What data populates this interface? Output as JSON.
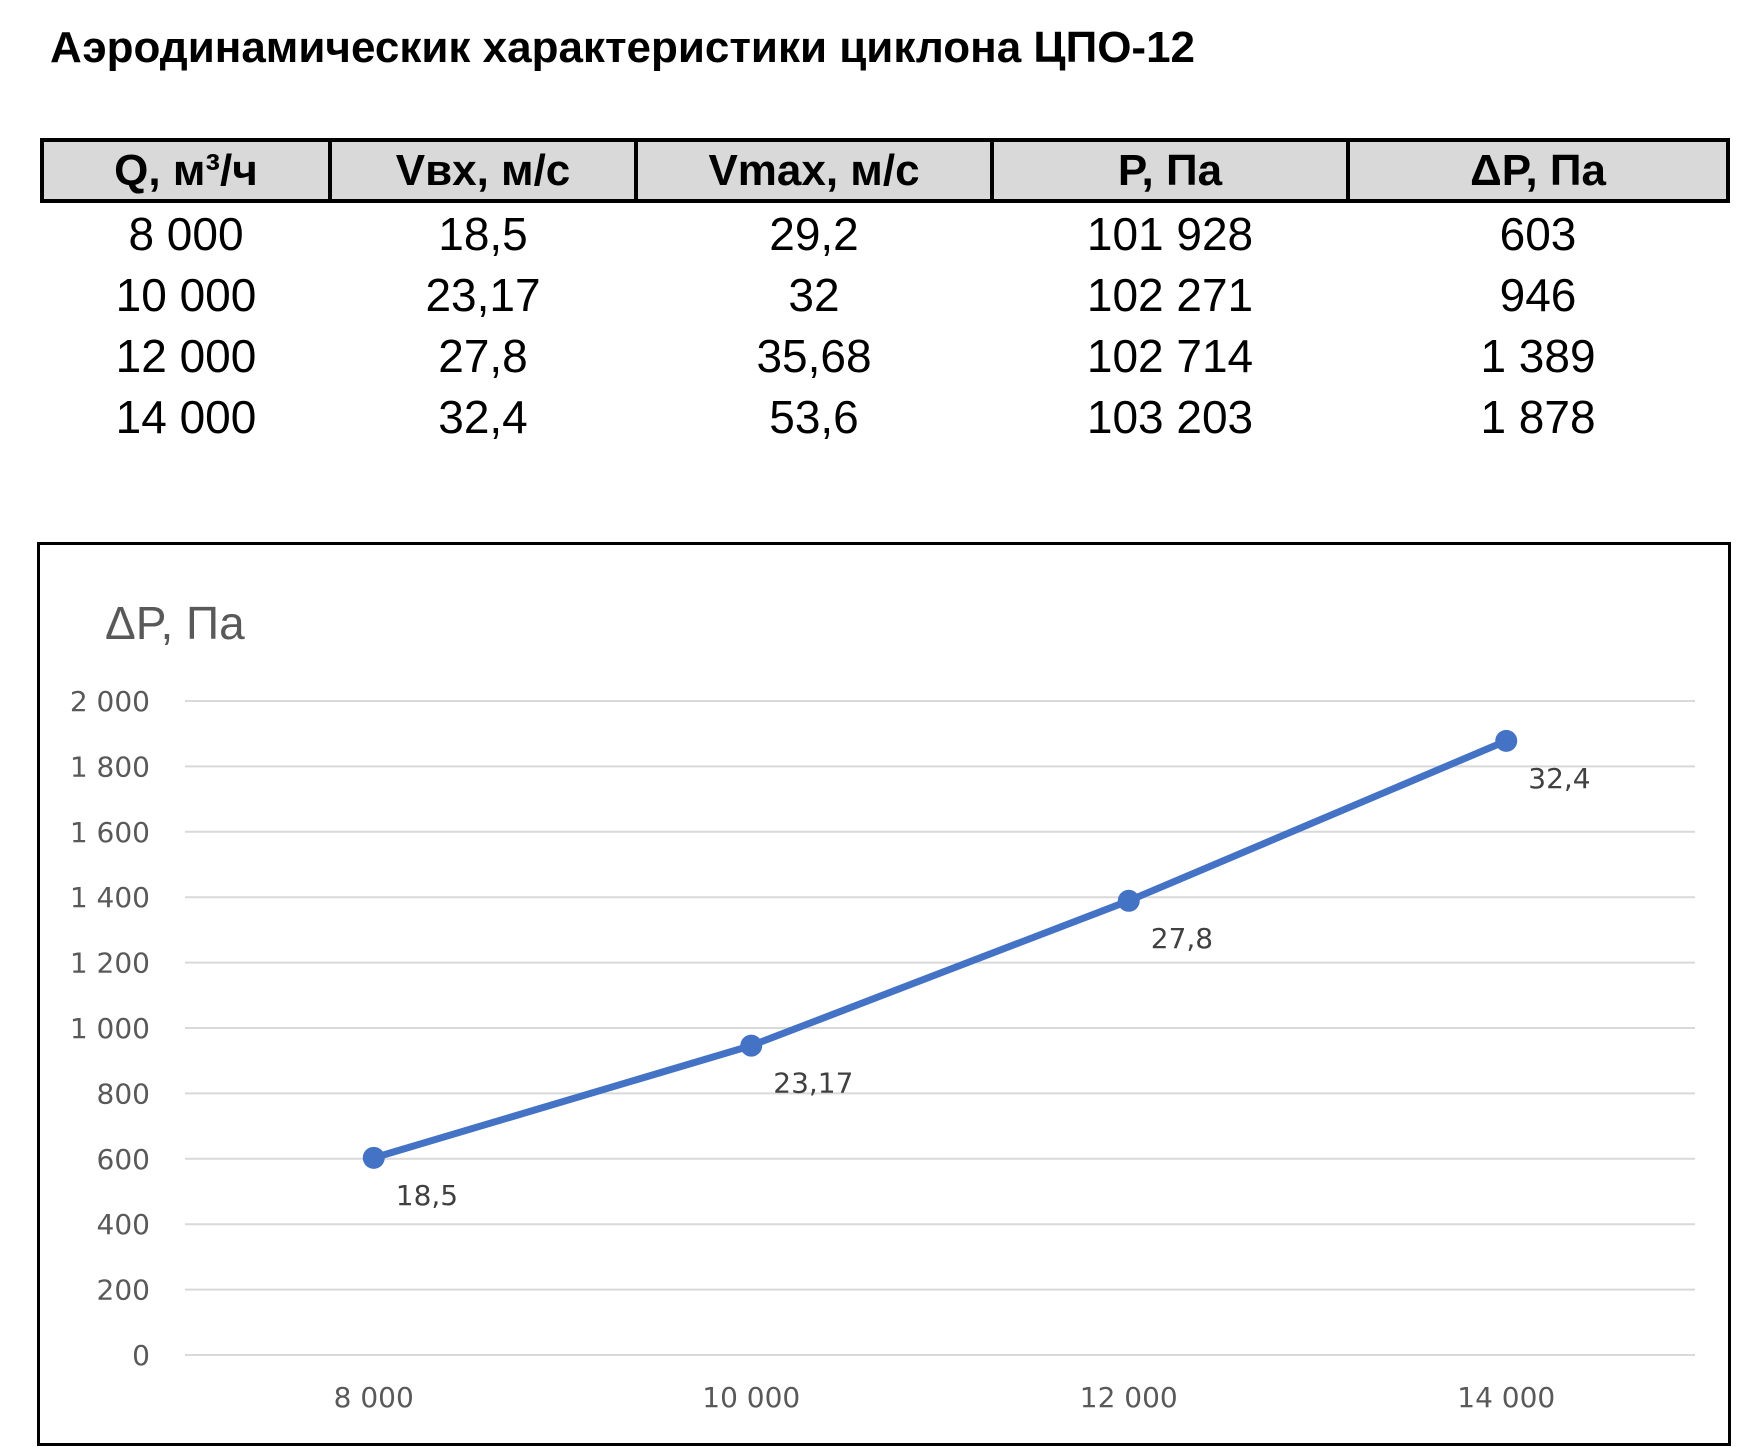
{
  "title": "Аэродинамическик характеристики циклона ЦПО-12",
  "table": {
    "headers": [
      "Q, м³/ч",
      "Vвх, м/с",
      "Vmax, м/с",
      "P, Па",
      "ΔP, Па"
    ],
    "rows": [
      [
        "8 000",
        "18,5",
        "29,2",
        "101 928",
        "603"
      ],
      [
        "10 000",
        "23,17",
        "32",
        "102 271",
        "946"
      ],
      [
        "12 000",
        "27,8",
        "35,68",
        "102 714",
        "1 389"
      ],
      [
        "14 000",
        "32,4",
        "53,6",
        "103 203",
        "1 878"
      ]
    ]
  },
  "chart_data": {
    "type": "line",
    "title": "",
    "ylabel": "ΔP, Па",
    "xlabel": "",
    "categories": [
      "8 000",
      "10 000",
      "12 000",
      "14 000"
    ],
    "series": [
      {
        "values": [
          603,
          946,
          1389,
          1878
        ],
        "data_labels": [
          "18,5",
          "23,17",
          "27,8",
          "32,4"
        ],
        "color": "#4472c4"
      }
    ],
    "ylim": [
      0,
      2000
    ],
    "yticks": [
      0,
      200,
      400,
      600,
      800,
      1000,
      1200,
      1400,
      1600,
      1800,
      2000
    ],
    "ytick_labels": [
      "0",
      "200",
      "400",
      "600",
      "800",
      "1 000",
      "1 200",
      "1 400",
      "1 600",
      "1 800",
      "2 000"
    ],
    "grid": true,
    "legend": "none",
    "gridline_color": "#d9d9d9"
  }
}
